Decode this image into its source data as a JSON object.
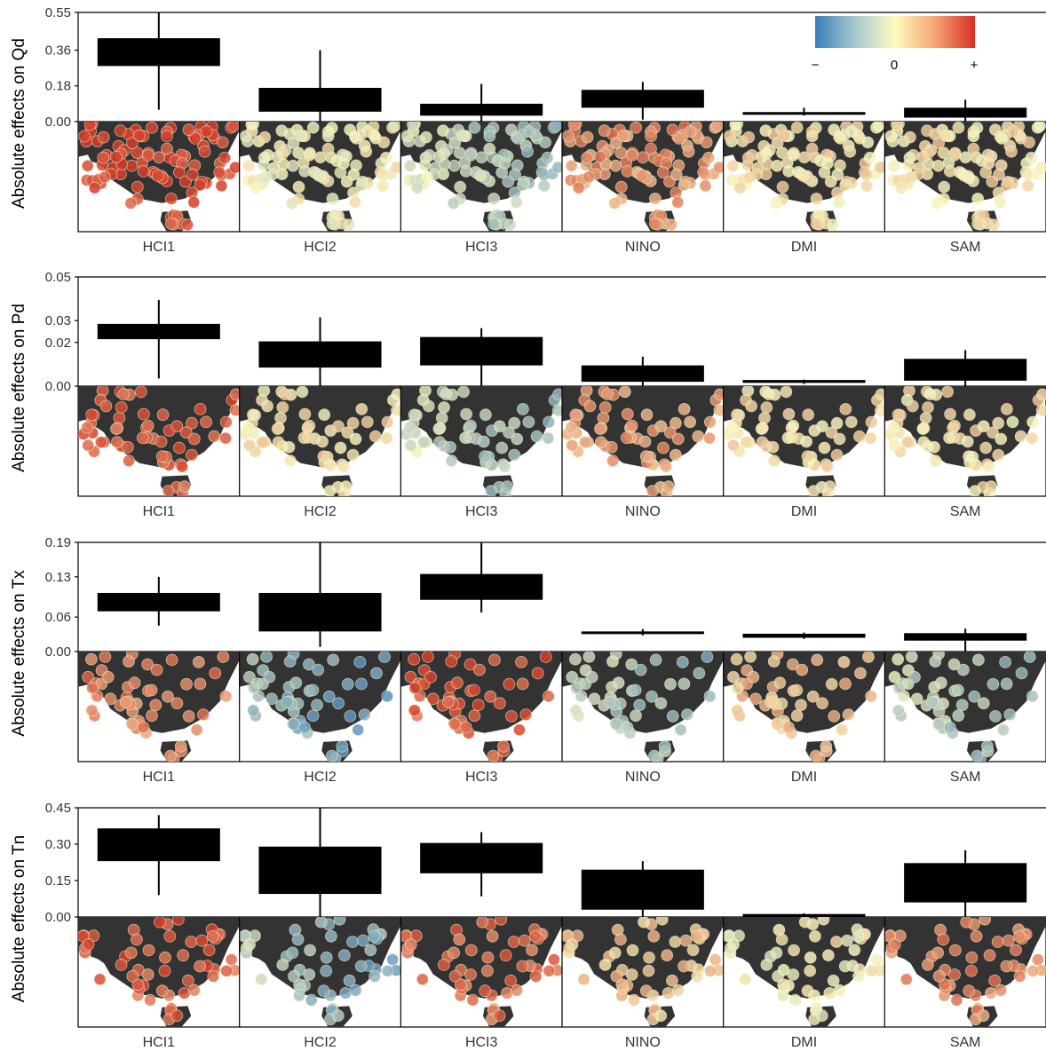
{
  "legend": {
    "labels": [
      "−",
      "0",
      "+"
    ],
    "colors": [
      "#3a7fb8",
      "#fdfbc0",
      "#d73027"
    ]
  },
  "palette": {
    "land": "#333333",
    "box": "#000000",
    "blue": "#4a88c0",
    "yellow": "#f7f4bd",
    "red": "#d6402b"
  },
  "chart_data": [
    {
      "type": "box",
      "ylabel": "Absolute effects on Qd",
      "ticks": [
        0.0,
        0.18,
        0.36,
        0.55
      ],
      "tick_labels": [
        "0.00",
        "0.18",
        "0.36",
        "0.55"
      ],
      "ylim": [
        0,
        0.55
      ],
      "categories": [
        "HCI1",
        "HCI2",
        "HCI3",
        "NINO",
        "DMI",
        "SAM"
      ],
      "boxes": [
        {
          "low": 0.06,
          "q1": 0.28,
          "q3": 0.42,
          "high": 0.55
        },
        {
          "low": 0.0,
          "q1": 0.05,
          "q3": 0.17,
          "high": 0.36
        },
        {
          "low": 0.0,
          "q1": 0.03,
          "q3": 0.09,
          "high": 0.19
        },
        {
          "low": 0.01,
          "q1": 0.07,
          "q3": 0.16,
          "high": 0.2
        },
        {
          "low": 0.03,
          "q1": 0.035,
          "q3": 0.048,
          "high": 0.07
        },
        {
          "low": 0.0,
          "q1": 0.02,
          "q3": 0.07,
          "high": 0.11
        }
      ],
      "map_effects": [
        0.9,
        0.0,
        -0.1,
        0.45,
        0.1,
        0.1
      ]
    },
    {
      "type": "box",
      "ylabel": "Absolute effects on Pd",
      "ticks": [
        0.0,
        0.02,
        0.03,
        0.05
      ],
      "tick_labels": [
        "0.00",
        "0.02",
        "0.03",
        "0.05"
      ],
      "ylim": [
        0,
        0.05
      ],
      "categories": [
        "HCI1",
        "HCI2",
        "HCI3",
        "NINO",
        "DMI",
        "SAM"
      ],
      "boxes": [
        {
          "low": 0.0035,
          "q1": 0.0215,
          "q3": 0.0285,
          "high": 0.0395
        },
        {
          "low": 0.0,
          "q1": 0.0085,
          "q3": 0.0205,
          "high": 0.0315
        },
        {
          "low": 0.0,
          "q1": 0.0095,
          "q3": 0.0225,
          "high": 0.0265
        },
        {
          "low": 0.0,
          "q1": 0.002,
          "q3": 0.0095,
          "high": 0.0135
        },
        {
          "low": 0.001,
          "q1": 0.0015,
          "q3": 0.0028,
          "high": 0.003
        },
        {
          "low": 0.0,
          "q1": 0.0025,
          "q3": 0.0125,
          "high": 0.0165
        }
      ],
      "map_effects": [
        0.75,
        0.1,
        -0.15,
        0.4,
        0.1,
        0.1
      ]
    },
    {
      "type": "box",
      "ylabel": "Absolute effects on Tx",
      "ticks": [
        0.0,
        0.06,
        0.13,
        0.19
      ],
      "tick_labels": [
        "0.00",
        "0.06",
        "0.13",
        "0.19"
      ],
      "ylim": [
        0,
        0.19
      ],
      "categories": [
        "HCI1",
        "HCI2",
        "HCI3",
        "NINO",
        "DMI",
        "SAM"
      ],
      "boxes": [
        {
          "low": 0.045,
          "q1": 0.07,
          "q3": 0.102,
          "high": 0.13
        },
        {
          "low": 0.008,
          "q1": 0.035,
          "q3": 0.102,
          "high": 0.19
        },
        {
          "low": 0.068,
          "q1": 0.09,
          "q3": 0.135,
          "high": 0.19
        },
        {
          "low": 0.028,
          "q1": 0.031,
          "q3": 0.035,
          "high": 0.039
        },
        {
          "low": 0.022,
          "q1": 0.024,
          "q3": 0.031,
          "high": 0.033
        },
        {
          "low": 0.0,
          "q1": 0.019,
          "q3": 0.032,
          "high": 0.04
        }
      ],
      "map_effects": [
        0.55,
        -0.45,
        0.8,
        -0.2,
        0.3,
        -0.2
      ]
    },
    {
      "type": "box",
      "ylabel": "Absolute effects on Tn",
      "ticks": [
        0.0,
        0.15,
        0.3,
        0.45
      ],
      "tick_labels": [
        "0.00",
        "0.15",
        "0.30",
        "0.45"
      ],
      "ylim": [
        0,
        0.45
      ],
      "categories": [
        "HCI1",
        "HCI2",
        "HCI3",
        "NINO",
        "DMI",
        "SAM"
      ],
      "boxes": [
        {
          "low": 0.09,
          "q1": 0.23,
          "q3": 0.365,
          "high": 0.42
        },
        {
          "low": 0.0,
          "q1": 0.095,
          "q3": 0.29,
          "high": 0.45
        },
        {
          "low": 0.085,
          "q1": 0.18,
          "q3": 0.305,
          "high": 0.35
        },
        {
          "low": 0.0,
          "q1": 0.03,
          "q3": 0.195,
          "high": 0.23
        },
        {
          "low": 0.0,
          "q1": 0.0,
          "q3": 0.012,
          "high": 0.015
        },
        {
          "low": 0.0,
          "q1": 0.06,
          "q3": 0.222,
          "high": 0.275
        }
      ],
      "map_effects": [
        0.75,
        -0.3,
        0.65,
        0.25,
        0.0,
        0.55
      ]
    }
  ]
}
